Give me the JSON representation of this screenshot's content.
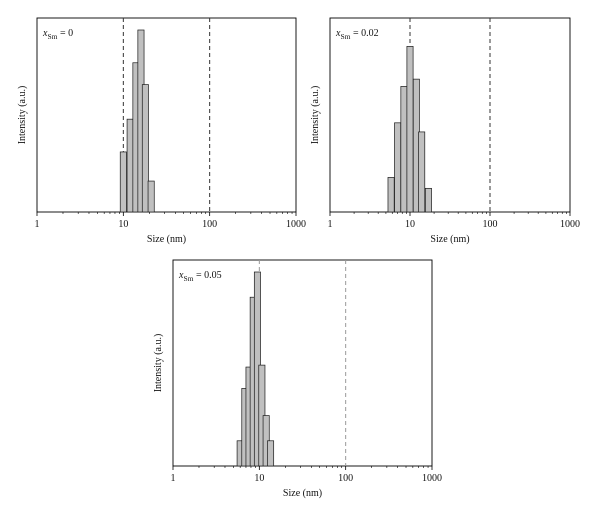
{
  "figure": {
    "panels": [
      {
        "label_var": "x",
        "label_sub": "Sm",
        "label_eq": " = 0"
      },
      {
        "label_var": "x",
        "label_sub": "Sm",
        "label_eq": " = 0.02"
      },
      {
        "label_var": "x",
        "label_sub": "Sm",
        "label_eq": " = 0.05"
      }
    ]
  },
  "colors": {
    "bar_fill": "#c0c0c0",
    "bar_stroke": "#1a1a1a",
    "axis": "#000000",
    "ref_line_dark": "#333333",
    "ref_line_light": "#999999"
  },
  "chart_data": [
    {
      "type": "bar",
      "x_scale": "log",
      "xlim": [
        1,
        1000
      ],
      "xticks": [
        "1",
        "10",
        "100",
        "1000"
      ],
      "xlabel": "Size (nm)",
      "ylabel": "Intensity (a.u.)",
      "yticks": [],
      "ylim": [
        0,
        100
      ],
      "x": [
        10,
        12,
        14,
        16,
        18,
        21
      ],
      "values": [
        33,
        51,
        82,
        100,
        70,
        17
      ],
      "reference_lines_x": [
        10,
        100
      ],
      "reference_line_color": "dark"
    },
    {
      "type": "bar",
      "x_scale": "log",
      "xlim": [
        1,
        1000
      ],
      "xticks": [
        "1",
        "10",
        "100",
        "1000"
      ],
      "xlabel": "Size (nm)",
      "ylabel": "Intensity (a.u.)",
      "yticks": [],
      "ylim": [
        0,
        100
      ],
      "x": [
        5.8,
        7.0,
        8.4,
        10,
        12,
        14,
        17
      ],
      "values": [
        19,
        49,
        69,
        91,
        73,
        44,
        13
      ],
      "reference_lines_x": [
        10,
        100
      ],
      "reference_line_color": "dark"
    },
    {
      "type": "bar",
      "x_scale": "log",
      "xlim": [
        1,
        1000
      ],
      "xticks": [
        "1",
        "10",
        "100",
        "1000"
      ],
      "xlabel": "Size (nm)",
      "ylabel": "Intensity (a.u.)",
      "yticks": [],
      "ylim": [
        0,
        100
      ],
      "x": [
        6.0,
        6.8,
        7.6,
        8.5,
        9.5,
        10.7,
        12,
        13.5
      ],
      "values": [
        13,
        40,
        51,
        87,
        100,
        52,
        26,
        13
      ],
      "reference_lines_x": [
        10,
        100
      ],
      "reference_line_color": "light"
    }
  ]
}
